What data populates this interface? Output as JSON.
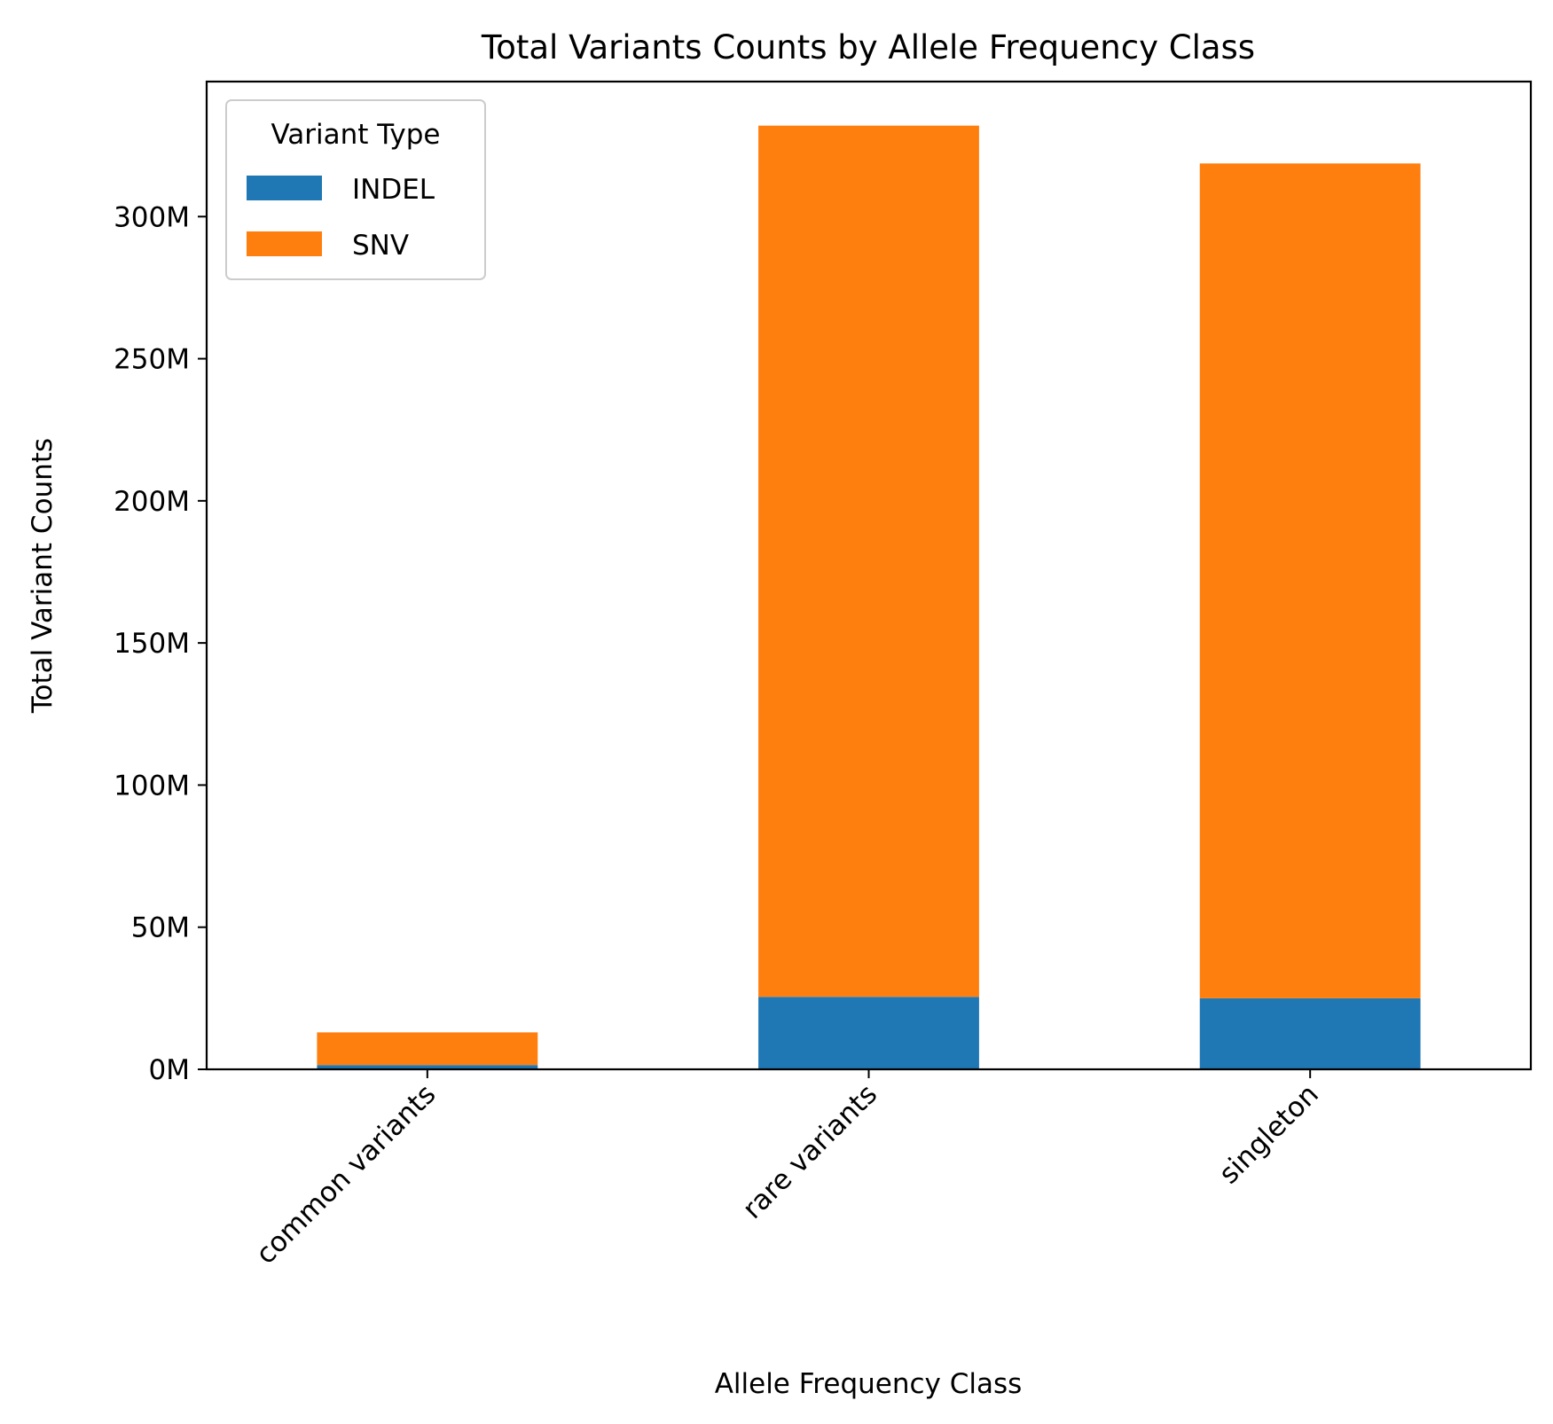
{
  "chart_data": {
    "type": "bar",
    "stacked": true,
    "title": "Total Variants Counts by Allele Frequency Class",
    "xlabel": "Allele Frequency Class",
    "ylabel": "Total Variant Counts",
    "categories": [
      "common variants",
      "rare variants",
      "singleton"
    ],
    "series": [
      {
        "name": "INDEL",
        "color": "#1f77b4",
        "values": [
          1.5,
          25.5,
          25.0
        ]
      },
      {
        "name": "SNV",
        "color": "#ff7f0e",
        "values": [
          11.5,
          306.5,
          293.7
        ]
      }
    ],
    "ylim": [
      0,
      347.5
    ],
    "unit": "M",
    "yticks": [
      0,
      50,
      100,
      150,
      200,
      250,
      300
    ],
    "ytick_labels": [
      "0M",
      "50M",
      "100M",
      "150M",
      "200M",
      "250M",
      "300M"
    ],
    "legend": {
      "title": "Variant Type",
      "placement": "top-left"
    },
    "grid": false
  }
}
